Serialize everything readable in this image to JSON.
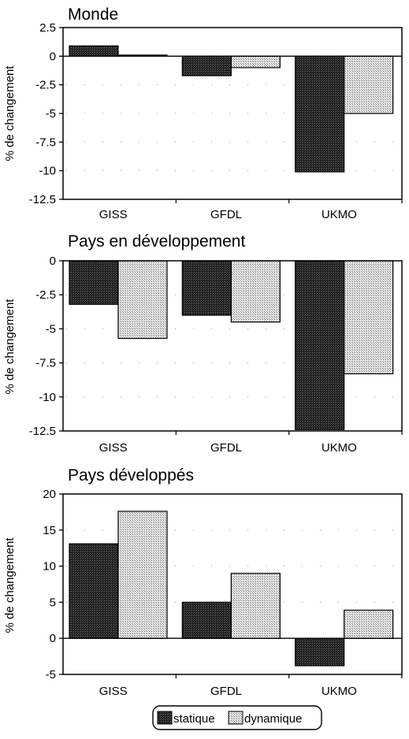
{
  "chart_data": [
    {
      "type": "bar",
      "title": "Monde",
      "ylabel": "% de changement",
      "categories": [
        "GISS",
        "GFDL",
        "UKMO"
      ],
      "ylim": [
        -12.5,
        2.5
      ],
      "yticks": [
        "2.5",
        "0",
        "-2.5",
        "-5",
        "-7.5",
        "-10",
        "-12.5"
      ],
      "ytick_values": [
        2.5,
        0,
        -2.5,
        -5,
        -7.5,
        -10,
        -12.5
      ],
      "series": [
        {
          "name": "statique",
          "values": [
            0.9,
            -1.7,
            -10.1
          ]
        },
        {
          "name": "dynamique",
          "values": [
            0.1,
            -1.0,
            -5.0
          ]
        }
      ]
    },
    {
      "type": "bar",
      "title": "Pays en développement",
      "ylabel": "% de changement",
      "categories": [
        "GISS",
        "GFDL",
        "UKMO"
      ],
      "ylim": [
        -12.5,
        0
      ],
      "yticks": [
        "0",
        "-2.5",
        "-5",
        "-7.5",
        "-10",
        "-12.5"
      ],
      "ytick_values": [
        0,
        -2.5,
        -5,
        -7.5,
        -10,
        -12.5
      ],
      "series": [
        {
          "name": "statique",
          "values": [
            -3.2,
            -4.0,
            -12.4
          ]
        },
        {
          "name": "dynamique",
          "values": [
            -5.7,
            -4.5,
            -8.3
          ]
        }
      ]
    },
    {
      "type": "bar",
      "title": "Pays développés",
      "ylabel": "% de changement",
      "categories": [
        "GISS",
        "GFDL",
        "UKMO"
      ],
      "ylim": [
        -5,
        20
      ],
      "yticks": [
        "20",
        "15",
        "10",
        "5",
        "0",
        "-5"
      ],
      "ytick_values": [
        20,
        15,
        10,
        5,
        0,
        -5
      ],
      "series": [
        {
          "name": "statique",
          "values": [
            13.1,
            5.0,
            -3.8
          ]
        },
        {
          "name": "dynamique",
          "values": [
            17.6,
            9.0,
            3.9
          ]
        }
      ]
    }
  ],
  "legend": {
    "items": [
      {
        "label": "statique",
        "pattern": "dark-stipple"
      },
      {
        "label": "dynamique",
        "pattern": "light-stipple"
      }
    ],
    "placement": "bottom"
  },
  "colors": {
    "static_fill": "#262626",
    "dynamic_fill": "#cfcfcf"
  }
}
